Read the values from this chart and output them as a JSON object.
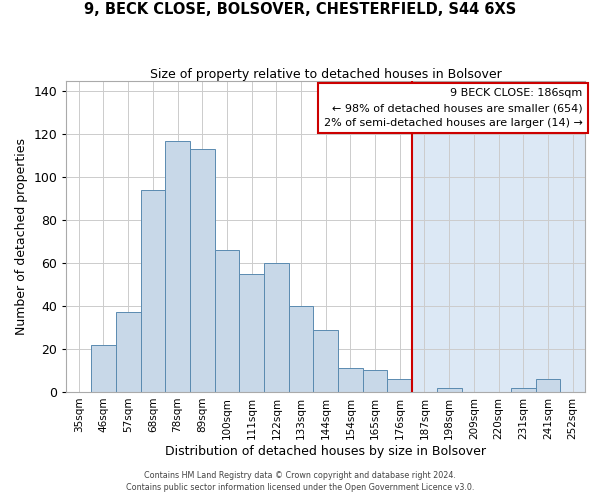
{
  "title": "9, BECK CLOSE, BOLSOVER, CHESTERFIELD, S44 6XS",
  "subtitle": "Size of property relative to detached houses in Bolsover",
  "xlabel": "Distribution of detached houses by size in Bolsover",
  "ylabel": "Number of detached properties",
  "bar_labels": [
    "35sqm",
    "46sqm",
    "57sqm",
    "68sqm",
    "78sqm",
    "89sqm",
    "100sqm",
    "111sqm",
    "122sqm",
    "133sqm",
    "144sqm",
    "154sqm",
    "165sqm",
    "176sqm",
    "187sqm",
    "198sqm",
    "209sqm",
    "220sqm",
    "231sqm",
    "241sqm",
    "252sqm"
  ],
  "bar_heights": [
    0,
    22,
    37,
    94,
    117,
    113,
    66,
    55,
    60,
    40,
    29,
    11,
    10,
    6,
    0,
    2,
    0,
    0,
    2,
    6,
    0
  ],
  "bar_color": "#c8d8e8",
  "bar_edge_color": "#5a8ab0",
  "highlight_color": "#dce8f5",
  "vline_idx": 14,
  "vline_color": "#cc0000",
  "ylim": [
    0,
    145
  ],
  "yticks": [
    0,
    20,
    40,
    60,
    80,
    100,
    120,
    140
  ],
  "annotation_box_text": "9 BECK CLOSE: 186sqm\n← 98% of detached houses are smaller (654)\n2% of semi-detached houses are larger (14) →",
  "footer_line1": "Contains HM Land Registry data © Crown copyright and database right 2024.",
  "footer_line2": "Contains public sector information licensed under the Open Government Licence v3.0.",
  "background_color": "#ffffff",
  "grid_color": "#cccccc"
}
